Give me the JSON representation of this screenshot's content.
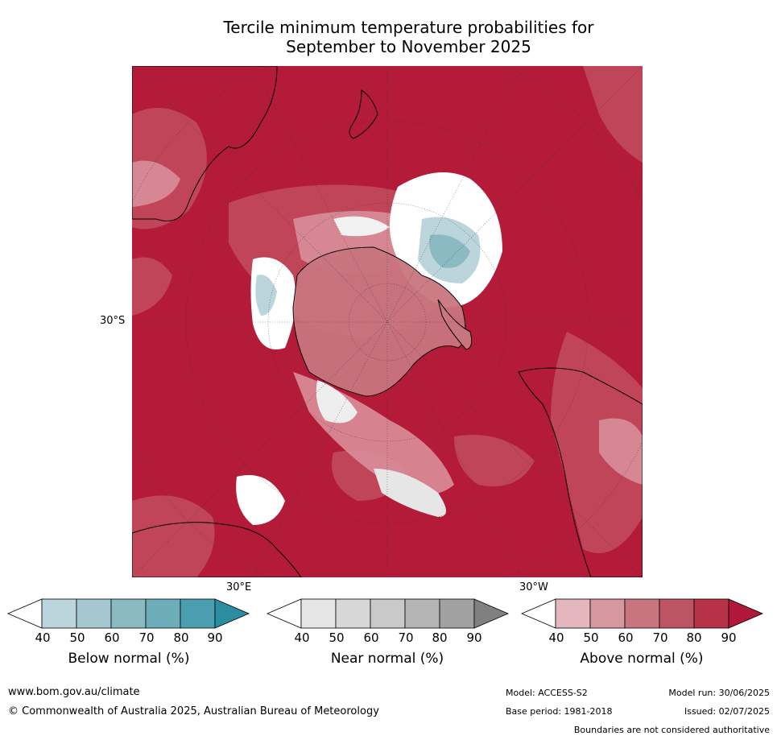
{
  "title_line1": "Tercile minimum temperature probabilities for",
  "title_line2": "September to November 2025",
  "map": {
    "lat_label": "30°S",
    "lon_label_east": "30°E",
    "lon_label_west": "30°W",
    "background_color": "#b31b39"
  },
  "colorbars": [
    {
      "label": "Below normal (%)",
      "ticks": [
        "40",
        "50",
        "60",
        "70",
        "80",
        "90"
      ],
      "colors": [
        "#ffffff",
        "#bcd5dc",
        "#a5c7cf",
        "#8cbac3",
        "#6dadb9",
        "#4a9eaf",
        "#2a8da2"
      ]
    },
    {
      "label": "Near normal (%)",
      "ticks": [
        "40",
        "50",
        "60",
        "70",
        "80",
        "90"
      ],
      "colors": [
        "#ffffff",
        "#e6e6e6",
        "#d7d7d7",
        "#c9c9c9",
        "#b5b5b5",
        "#a1a1a1",
        "#808080"
      ]
    },
    {
      "label": "Above normal (%)",
      "ticks": [
        "40",
        "50",
        "60",
        "70",
        "80",
        "90"
      ],
      "colors": [
        "#ffffff",
        "#e3b7bd",
        "#d6979f",
        "#c9757f",
        "#bc5463",
        "#b73247",
        "#b0173a"
      ]
    }
  ],
  "footer": {
    "url": "www.bom.gov.au/climate",
    "copyright": "© Commonwealth of Australia 2025, Australian Bureau of Meteorology",
    "model": "Model: ACCESS-S2",
    "base_period": "Base period: 1981-2018",
    "model_run": "Model run: 30/06/2025",
    "issued": "Issued: 02/07/2025",
    "disclaimer": "Boundaries are not considered authoritative"
  }
}
